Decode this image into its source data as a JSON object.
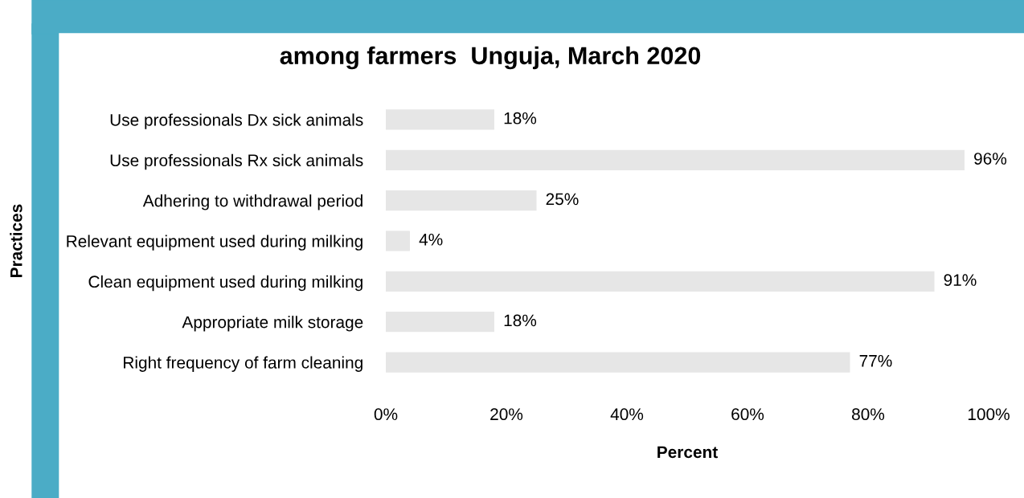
{
  "chart_data": {
    "type": "bar",
    "orientation": "horizontal",
    "title": "among farmers  Unguja, March 2020",
    "xlabel": "Percent",
    "ylabel": "Practices",
    "categories": [
      "Use professionals Dx sick animals",
      "Use professionals Rx sick animals",
      "Adhering to withdrawal period",
      "Relevant equipment used during milking",
      "Clean equipment used during milking",
      "Appropriate milk storage",
      "Right frequency of farm cleaning"
    ],
    "values": [
      18,
      96,
      25,
      4,
      91,
      18,
      77
    ],
    "value_labels": [
      "18%",
      "96%",
      "25%",
      "4%",
      "91%",
      "18%",
      "77%"
    ],
    "color": "#e6e6e6",
    "xlim": [
      0,
      100
    ],
    "xticks": [
      {
        "value": 0,
        "label": "0%"
      },
      {
        "value": 20,
        "label": "20%"
      },
      {
        "value": 40,
        "label": "40%"
      },
      {
        "value": 60,
        "label": "60%"
      },
      {
        "value": 80,
        "label": "80%"
      },
      {
        "value": 100,
        "label": "100%"
      }
    ],
    "grid": false,
    "legend": false
  }
}
